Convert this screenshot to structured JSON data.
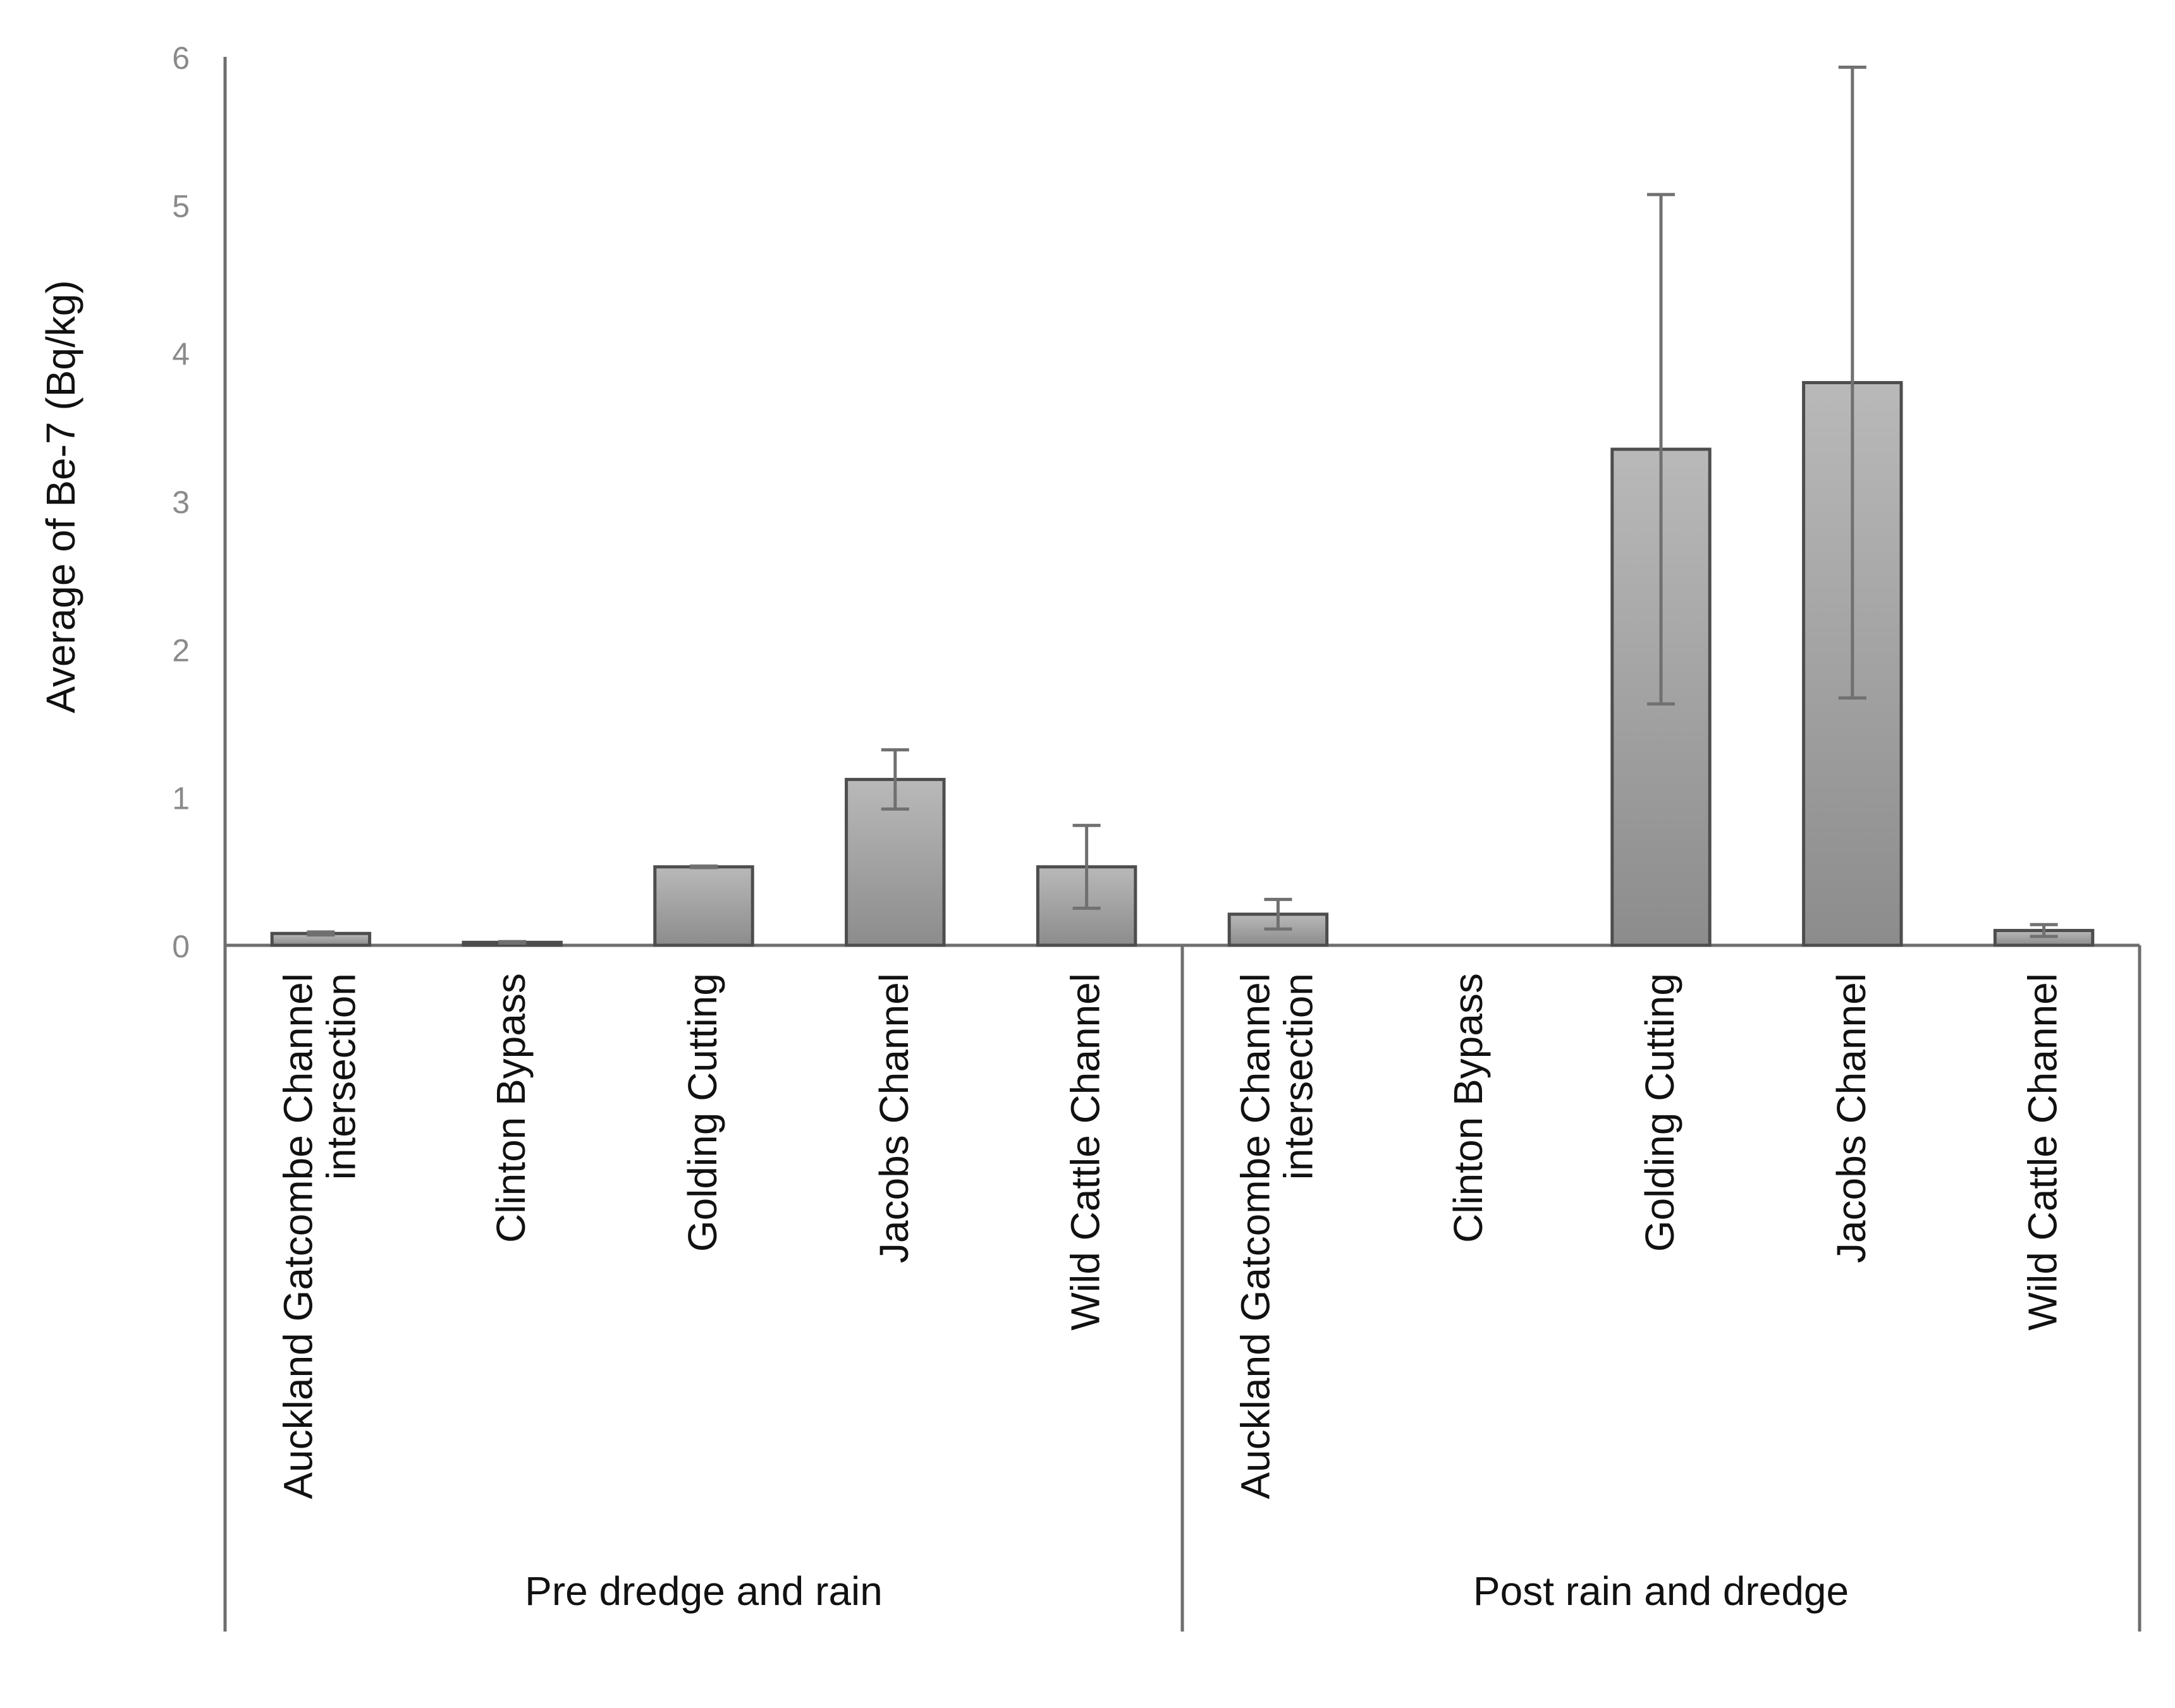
{
  "chart_data": {
    "type": "bar",
    "title": "",
    "ylabel": "Average  of Be-7  (Bq/kg)",
    "xlabel": "",
    "ylim": [
      0,
      6
    ],
    "yticks": [
      0,
      1,
      2,
      3,
      4,
      5,
      6
    ],
    "grid": false,
    "legend": "none",
    "colors": {
      "bar_fill_top": "#b9b9b9",
      "bar_fill_bottom": "#8c8c8c",
      "bar_stroke": "#4d4d4d",
      "axis": "#6e6e6e",
      "tick_label": "#8a8a8a",
      "text": "#111111",
      "error_bar": "#707070"
    },
    "groups": [
      {
        "name": "Pre dredge and rain",
        "categories": [
          [
            "Auckland Gatcombe Channel",
            "intersection"
          ],
          [
            "Clinton Bypass"
          ],
          [
            "Golding Cutting"
          ],
          [
            "Jacobs Channel"
          ],
          [
            "Wild Cattle Channel"
          ]
        ],
        "values": [
          0.08,
          0.02,
          0.53,
          1.12,
          0.53
        ],
        "errors": [
          0.01,
          0.005,
          0.005,
          0.2,
          0.28
        ]
      },
      {
        "name": "Post rain and dredge",
        "categories": [
          [
            "Auckland Gatcombe Channel",
            "intersection"
          ],
          [
            "Clinton Bypass"
          ],
          [
            "Golding Cutting"
          ],
          [
            "Jacobs Channel"
          ],
          [
            "Wild Cattle Channel"
          ]
        ],
        "values": [
          0.21,
          0,
          3.35,
          3.8,
          0.1
        ],
        "errors": [
          0.1,
          0,
          1.72,
          2.13,
          0.04
        ]
      }
    ]
  }
}
